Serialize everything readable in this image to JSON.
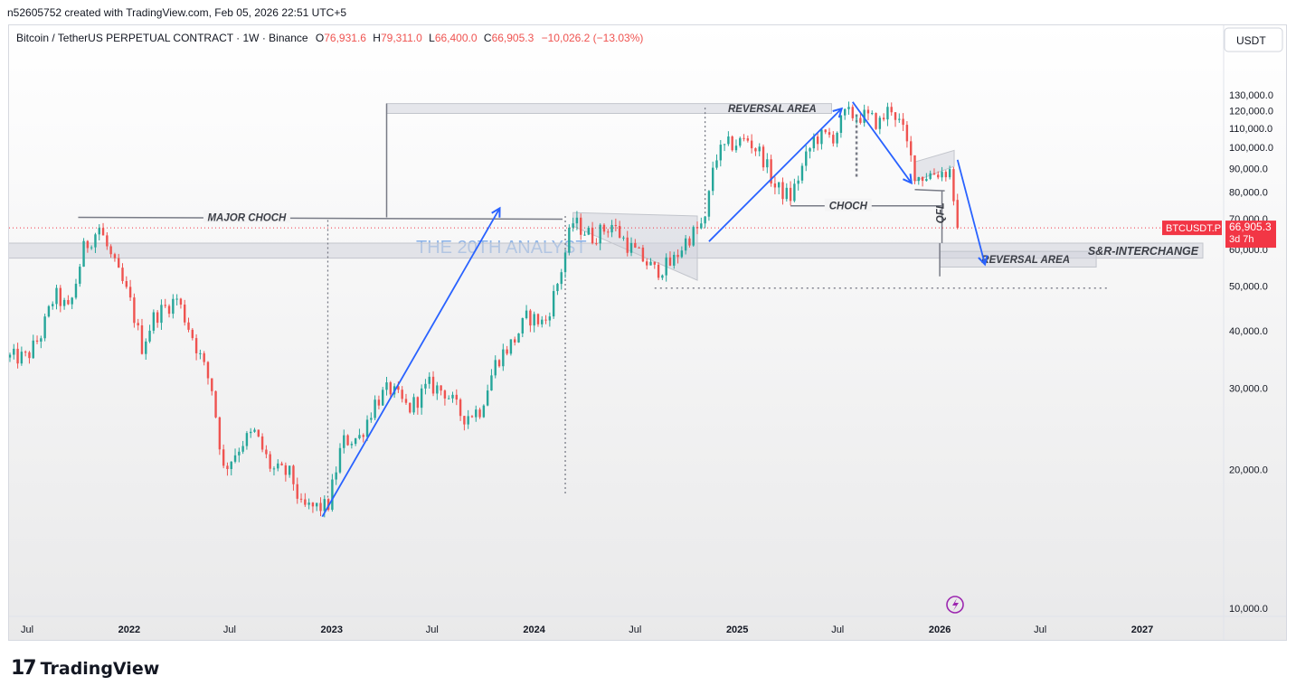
{
  "header": {
    "created_line": "n52605752 created with TradingView.com, Feb 05, 2026 22:51 UTC+5",
    "symbol_desc": "Bitcoin / TetherUS PERPETUAL CONTRACT · 1W · Binance",
    "open_label": "O",
    "open_value": "76,931.6",
    "high_label": "H",
    "high_value": "79,311.0",
    "low_label": "L",
    "low_value": "66,400.0",
    "close_label": "C",
    "close_value": "66,905.3",
    "change_value": "−10,026.2 (−13.03%)"
  },
  "currency_button": "USDT",
  "price_label": {
    "symbol": "BTCUSDT.P",
    "value": "66,905.3",
    "countdown": "3d 7h"
  },
  "watermark": "THE 20TH ANALYST",
  "footer": {
    "brand": "TradingView"
  },
  "colors": {
    "up": "#26a69a",
    "down": "#ef5350",
    "arrow": "#2962ff",
    "zone": "#d1d4dc",
    "price_badge": "#f23645"
  },
  "annotations": [
    {
      "text": "MAJOR CHOCH",
      "type": "line-label"
    },
    {
      "text": "REVERSAL AREA",
      "type": "zone-label"
    },
    {
      "text": "CHOCH",
      "type": "line-label"
    },
    {
      "text": "QFL",
      "type": "rotated-label"
    },
    {
      "text": "S&R-INTERCHANGE",
      "type": "zone-label"
    },
    {
      "text": "REVERSAL AREA",
      "type": "zone-label"
    }
  ],
  "chart_data": {
    "type": "candlestick",
    "title": "Bitcoin / TetherUS PERPETUAL CONTRACT · 1W · Binance",
    "y_axis": {
      "scale": "log",
      "ticks": [
        10000,
        20000,
        30000,
        40000,
        50000,
        60000,
        70000,
        80000,
        90000,
        100000,
        110000,
        120000,
        130000
      ],
      "tick_labels": [
        "10,000.0",
        "20,000.0",
        "30,000.0",
        "40,000.0",
        "50,000.0",
        "60,000.0",
        "70,000.0",
        "80,000.0",
        "90,000.0",
        "100,000.0",
        "110,000.0",
        "120,000.0",
        "130,000.0"
      ],
      "position": "right"
    },
    "x_axis": {
      "ticks": [
        {
          "date": "2021-07",
          "label": "Jul"
        },
        {
          "date": "2022-01",
          "label": "2022"
        },
        {
          "date": "2022-07",
          "label": "Jul"
        },
        {
          "date": "2023-01",
          "label": "2023"
        },
        {
          "date": "2023-07",
          "label": "Jul"
        },
        {
          "date": "2024-01",
          "label": "2024"
        },
        {
          "date": "2024-07",
          "label": "Jul"
        },
        {
          "date": "2025-01",
          "label": "2025"
        },
        {
          "date": "2025-07",
          "label": "Jul"
        },
        {
          "date": "2026-01",
          "label": "2026"
        },
        {
          "date": "2026-07",
          "label": "Jul"
        },
        {
          "date": "2027-01",
          "label": "2027"
        }
      ]
    },
    "series": [
      {
        "date": "2021-05-31",
        "close": 35000
      },
      {
        "date": "2021-06-30",
        "close": 35000
      },
      {
        "date": "2021-07-25",
        "close": 39000
      },
      {
        "date": "2021-08-20",
        "close": 48000
      },
      {
        "date": "2021-09-15",
        "close": 44000
      },
      {
        "date": "2021-10-10",
        "close": 60000
      },
      {
        "date": "2021-11-08",
        "close": 67000
      },
      {
        "date": "2021-12-01",
        "close": 57000
      },
      {
        "date": "2022-01-01",
        "close": 47000
      },
      {
        "date": "2022-01-24",
        "close": 37000
      },
      {
        "date": "2022-02-15",
        "close": 43000
      },
      {
        "date": "2022-03-28",
        "close": 47000
      },
      {
        "date": "2022-04-25",
        "close": 39000
      },
      {
        "date": "2022-05-30",
        "close": 30000
      },
      {
        "date": "2022-06-20",
        "close": 20000
      },
      {
        "date": "2022-07-25",
        "close": 23000
      },
      {
        "date": "2022-08-15",
        "close": 24000
      },
      {
        "date": "2022-09-15",
        "close": 20000
      },
      {
        "date": "2022-10-20",
        "close": 19500
      },
      {
        "date": "2022-11-07",
        "close": 16500
      },
      {
        "date": "2022-12-25",
        "close": 16600
      },
      {
        "date": "2023-01-20",
        "close": 23000
      },
      {
        "date": "2023-02-20",
        "close": 23500
      },
      {
        "date": "2023-03-20",
        "close": 28000
      },
      {
        "date": "2023-04-15",
        "close": 30000
      },
      {
        "date": "2023-05-20",
        "close": 27000
      },
      {
        "date": "2023-06-25",
        "close": 30500
      },
      {
        "date": "2023-07-25",
        "close": 29500
      },
      {
        "date": "2023-08-25",
        "close": 26000
      },
      {
        "date": "2023-09-25",
        "close": 27000
      },
      {
        "date": "2023-10-25",
        "close": 34500
      },
      {
        "date": "2023-11-25",
        "close": 38000
      },
      {
        "date": "2023-12-20",
        "close": 43000
      },
      {
        "date": "2024-01-20",
        "close": 41500
      },
      {
        "date": "2024-02-15",
        "close": 52000
      },
      {
        "date": "2024-03-10",
        "close": 69000
      },
      {
        "date": "2024-04-15",
        "close": 64000
      },
      {
        "date": "2024-05-20",
        "close": 68000
      },
      {
        "date": "2024-06-20",
        "close": 61000
      },
      {
        "date": "2024-07-10",
        "close": 58000
      },
      {
        "date": "2024-08-05",
        "close": 54000
      },
      {
        "date": "2024-09-05",
        "close": 56000
      },
      {
        "date": "2024-10-01",
        "close": 63000
      },
      {
        "date": "2024-11-05",
        "close": 69000
      },
      {
        "date": "2024-11-20",
        "close": 95000
      },
      {
        "date": "2024-12-15",
        "close": 101000
      },
      {
        "date": "2025-01-20",
        "close": 104000
      },
      {
        "date": "2025-02-15",
        "close": 96000
      },
      {
        "date": "2025-03-10",
        "close": 82000
      },
      {
        "date": "2025-04-07",
        "close": 78000
      },
      {
        "date": "2025-05-20",
        "close": 105000
      },
      {
        "date": "2025-06-25",
        "close": 106000
      },
      {
        "date": "2025-07-15",
        "close": 118000
      },
      {
        "date": "2025-08-15",
        "close": 117000
      },
      {
        "date": "2025-09-15",
        "close": 113000
      },
      {
        "date": "2025-10-05",
        "close": 123000
      },
      {
        "date": "2025-10-25",
        "close": 110000
      },
      {
        "date": "2025-11-20",
        "close": 86000
      },
      {
        "date": "2025-12-20",
        "close": 88000
      },
      {
        "date": "2026-01-20",
        "close": 89000
      },
      {
        "date": "2026-02-02",
        "close": 66905.3
      }
    ],
    "last_price": 66905.3
  }
}
